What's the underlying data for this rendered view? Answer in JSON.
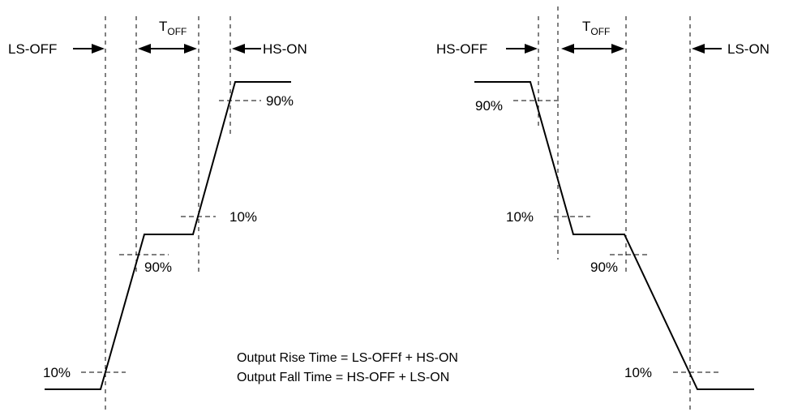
{
  "rise_diagram": {
    "ls_off_label": "LS-OFF",
    "toff_main": "T",
    "toff_sub": "OFF",
    "hs_on_label": "HS-ON",
    "pct_90_top": "90%",
    "pct_10_mid": "10%",
    "pct_90_mid": "90%",
    "pct_10_bottom": "10%"
  },
  "fall_diagram": {
    "hs_off_label": "HS-OFF",
    "toff_main": "T",
    "toff_sub": "OFF",
    "ls_on_label": "LS-ON",
    "pct_90_top": "90%",
    "pct_10_mid": "10%",
    "pct_90_mid": "90%",
    "pct_10_bottom": "10%"
  },
  "notes": {
    "rise_formula": "Output Rise Time = LS-OFFf + HS-ON",
    "fall_formula": "Output Fall Time = HS-OFF + LS-ON"
  },
  "colors": {
    "ink": "#000000",
    "background": "#ffffff"
  }
}
